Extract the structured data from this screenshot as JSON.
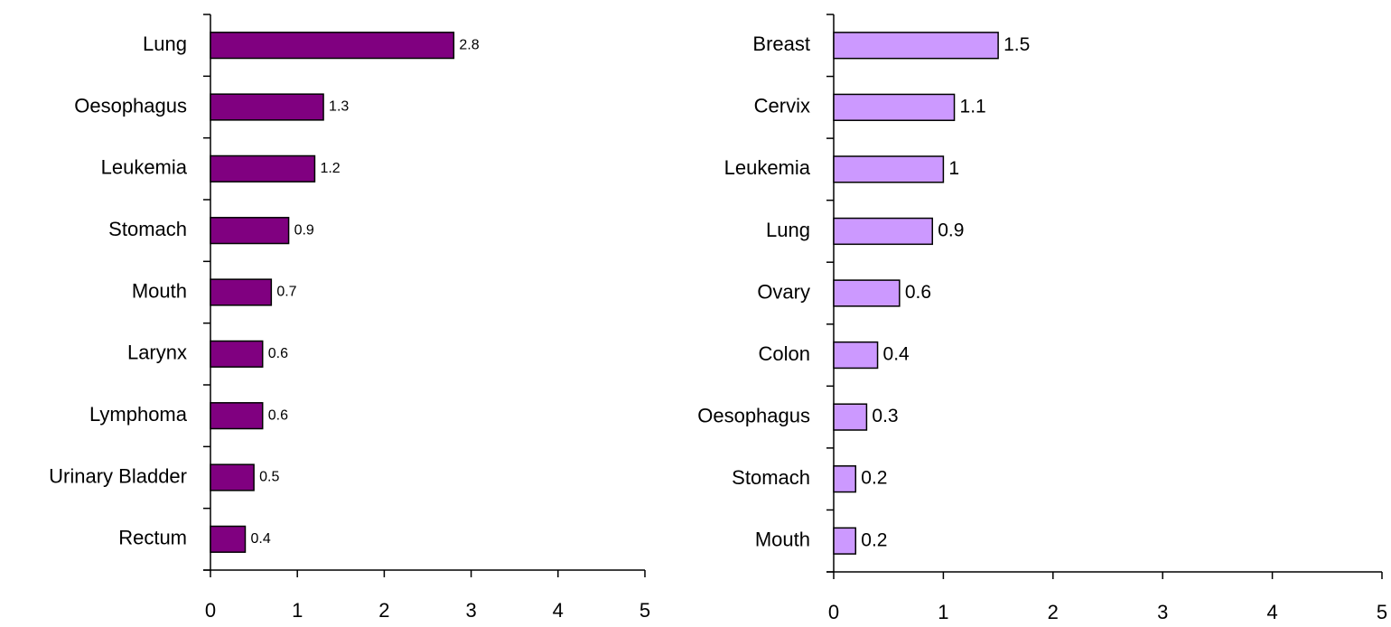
{
  "chart_data": [
    {
      "type": "bar",
      "orientation": "horizontal",
      "color": "#800080",
      "categories": [
        "Lung",
        "Oesophagus",
        "Leukemia",
        "Stomach",
        "Mouth",
        "Larynx",
        "Lymphoma",
        "Urinary Bladder",
        "Rectum"
      ],
      "values": [
        2.8,
        1.3,
        1.2,
        0.9,
        0.7,
        0.6,
        0.6,
        0.5,
        0.4
      ],
      "xlim": [
        0,
        5
      ],
      "xticks": [
        0,
        1,
        2,
        3,
        4,
        5
      ],
      "grid": false
    },
    {
      "type": "bar",
      "orientation": "horizontal",
      "color": "#cc99ff",
      "categories": [
        "Breast",
        "Cervix",
        "Leukemia",
        "Lung",
        "Ovary",
        "Colon",
        "Oesophagus",
        "Stomach",
        "Mouth"
      ],
      "values": [
        1.5,
        1.1,
        1,
        0.9,
        0.6,
        0.4,
        0.3,
        0.2,
        0.2
      ],
      "xlim": [
        0,
        5
      ],
      "xticks": [
        0,
        1,
        2,
        3,
        4,
        5
      ],
      "grid": false
    }
  ]
}
